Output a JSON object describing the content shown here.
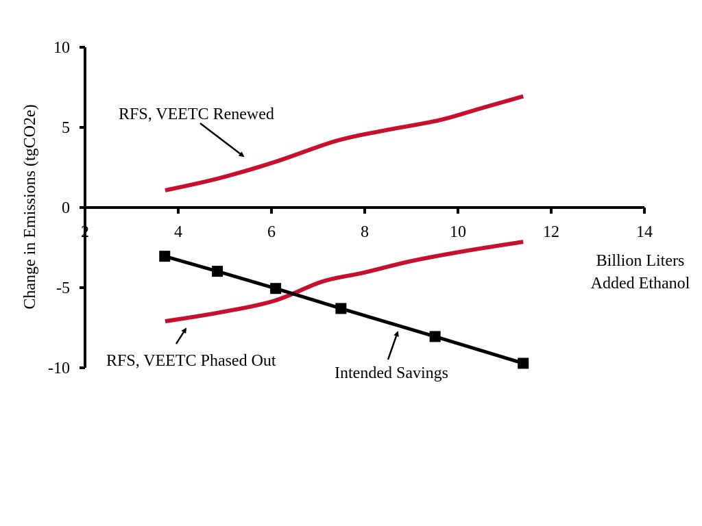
{
  "chart_data": {
    "type": "line",
    "title": "",
    "xlabel": "Billion Liters Added Ethanol",
    "xlabel_lines": [
      "Billion Liters",
      "Added Ethanol"
    ],
    "ylabel": "Change in Emissions (tgCO2e)",
    "xlim": [
      2,
      14
    ],
    "ylim": [
      -10,
      10
    ],
    "x_ticks": [
      2,
      4,
      6,
      8,
      10,
      12,
      14
    ],
    "x_tick_labels": [
      "2",
      "4",
      "6",
      "8",
      "10",
      "12",
      "14"
    ],
    "y_ticks": [
      10,
      5,
      0,
      -5,
      -10
    ],
    "y_tick_labels": [
      "10",
      "5",
      "0",
      "-5",
      "-10"
    ],
    "grid": false,
    "legend": "none",
    "series": [
      {
        "name": "RFS, VEETC Renewed",
        "color": "#c8102e",
        "marker": "none",
        "x": [
          3.72,
          4.84,
          6.06,
          7.38,
          8.41,
          9.59,
          10.47,
          11.4
        ],
        "y": [
          1.07,
          1.8,
          2.83,
          4.15,
          4.8,
          5.44,
          6.17,
          6.94
        ]
      },
      {
        "name": "RFS, VEETC Phased Out",
        "color": "#c8102e",
        "marker": "none",
        "x": [
          3.72,
          4.88,
          6.06,
          7.09,
          7.97,
          9.0,
          10.18,
          11.4
        ],
        "y": [
          -7.1,
          -6.55,
          -5.82,
          -4.62,
          -4.07,
          -3.34,
          -2.7,
          -2.14
        ]
      },
      {
        "name": "Intended Savings",
        "color": "#000000",
        "marker": "square",
        "x": [
          3.71,
          4.84,
          6.09,
          7.49,
          9.51,
          11.4
        ],
        "y": [
          -3.04,
          -3.98,
          -5.05,
          -6.3,
          -8.05,
          -9.72
        ]
      }
    ],
    "annotations": [
      {
        "text": "RFS, VEETC Renewed",
        "target_series": 0
      },
      {
        "text": "RFS, VEETC Phased Out",
        "target_series": 1
      },
      {
        "text": "Intended Savings",
        "target_series": 2
      }
    ]
  }
}
